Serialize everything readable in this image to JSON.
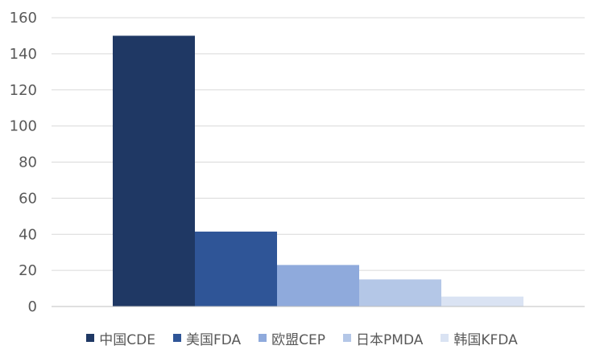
{
  "chart_data": {
    "type": "bar",
    "title": "",
    "xlabel": "",
    "ylabel": "",
    "ylim": [
      0,
      160
    ],
    "yticks": [
      0,
      20,
      40,
      60,
      80,
      100,
      120,
      140,
      160
    ],
    "grid": true,
    "legend_position": "bottom",
    "series": [
      {
        "name": "中国CDE",
        "value": 150,
        "color": "#1f3864"
      },
      {
        "name": "美国FDA",
        "value": 41.5,
        "color": "#2f5597"
      },
      {
        "name": "欧盟CEP",
        "value": 23,
        "color": "#8faadc"
      },
      {
        "name": "日本PMDA",
        "value": 15,
        "color": "#b4c7e7"
      },
      {
        "name": "韩国KFDA",
        "value": 5.5,
        "color": "#dae3f3"
      }
    ]
  }
}
